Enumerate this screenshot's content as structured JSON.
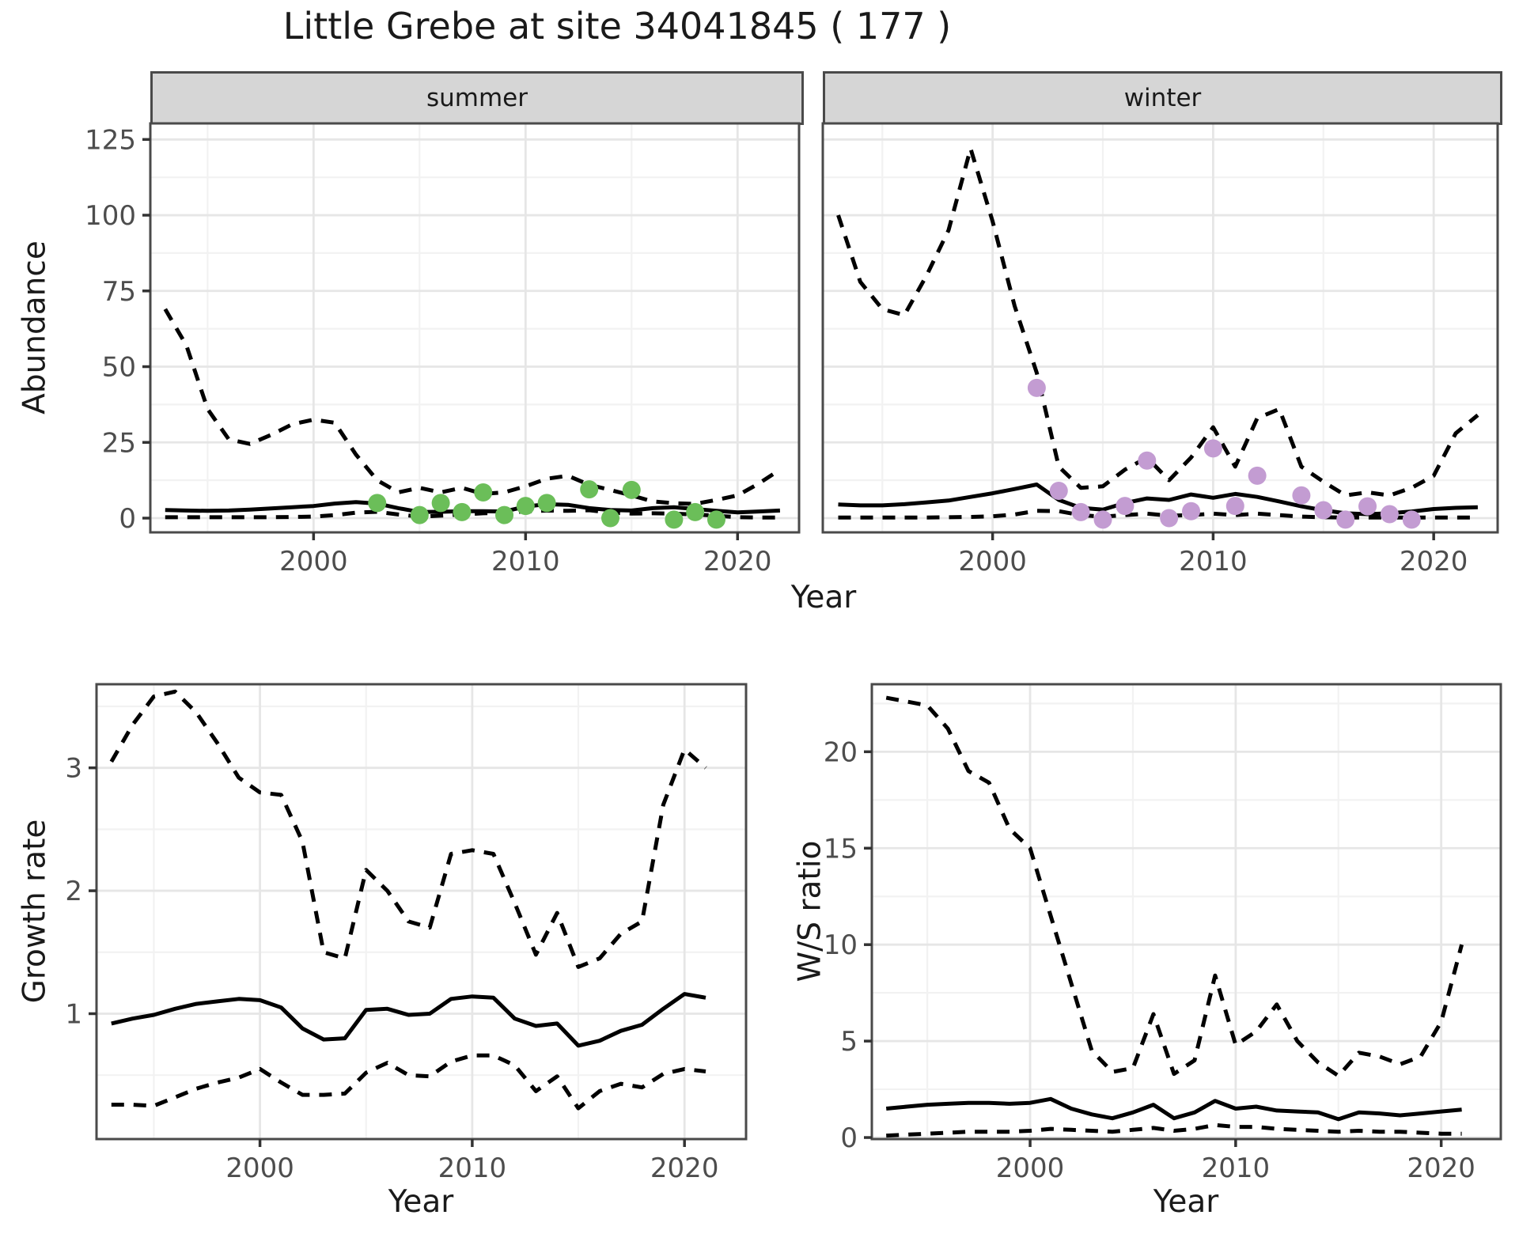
{
  "title": "Little Grebe at site 34041845 ( 177 )",
  "facets": {
    "summer": "summer",
    "winter": "winter"
  },
  "axis_labels": {
    "abundance": "Abundance",
    "year_top": "Year",
    "growth_rate": "Growth rate",
    "year_bottom_left": "Year",
    "ws_ratio": "W/S ratio",
    "year_bottom_right": "Year"
  },
  "colors": {
    "summer_points": "#6BBE59",
    "winter_points": "#C39CD2",
    "line": "#000000",
    "strip_bg": "#D6D6D6",
    "panel_border": "#4A4A4A",
    "grid_major": "#E6E6E6",
    "grid_minor": "#F2F2F2",
    "tick_text": "#4D4D4D"
  },
  "chart_data": [
    {
      "type": "line",
      "name": "abundance-summer",
      "facet": "summer",
      "ylabel": "Abundance",
      "xlabel": "Year",
      "xlim": [
        1992.3,
        2022.9
      ],
      "ylim": [
        -4.7,
        130.3
      ],
      "xticks": [
        2000,
        2010,
        2020
      ],
      "xtick_minor": [
        1995,
        2005,
        2015
      ],
      "yticks": [
        0,
        25,
        50,
        75,
        100,
        125
      ],
      "ytick_minor": [
        12.5,
        37.5,
        62.5,
        87.5,
        112.5
      ],
      "grid": true,
      "years": [
        1993,
        1994,
        1995,
        1996,
        1997,
        1998,
        1999,
        2000,
        2001,
        2002,
        2003,
        2004,
        2005,
        2006,
        2007,
        2008,
        2009,
        2010,
        2011,
        2012,
        2013,
        2014,
        2015,
        2016,
        2017,
        2018,
        2019,
        2020,
        2021,
        2022
      ],
      "series": [
        {
          "name": "upper_95ci",
          "style": "dashed",
          "values": [
            69,
            57,
            36,
            26,
            24.5,
            27.5,
            31,
            32.5,
            31.5,
            21,
            12.5,
            8.5,
            10,
            8.5,
            10,
            8,
            8.5,
            10.5,
            13,
            14,
            11,
            9.3,
            7.5,
            5.5,
            4.9,
            4.7,
            6,
            7.5,
            11.4,
            16
          ]
        },
        {
          "name": "mean",
          "style": "solid",
          "values": [
            2.7,
            2.5,
            2.4,
            2.5,
            2.8,
            3.2,
            3.6,
            4.0,
            4.8,
            5.3,
            4.8,
            3.3,
            2.0,
            2.1,
            2.3,
            2.3,
            2.2,
            3.8,
            4.6,
            4.4,
            3.3,
            2.7,
            2.5,
            3.3,
            3.6,
            3.0,
            2.4,
            1.9,
            2.2,
            2.5
          ]
        },
        {
          "name": "lower_95ci",
          "style": "dashed",
          "values": [
            0.3,
            0.3,
            0.3,
            0.3,
            0.3,
            0.3,
            0.4,
            0.5,
            1.0,
            1.8,
            2.1,
            1.2,
            0.5,
            0.8,
            1.2,
            1.6,
            1.8,
            2.2,
            2.5,
            2.4,
            2.6,
            1.8,
            1.5,
            1.6,
            1.5,
            1.2,
            0.8,
            0.3,
            0.2,
            0.2
          ]
        }
      ],
      "observations": {
        "color_key": "summer_points",
        "points": [
          [
            2003,
            5
          ],
          [
            2005,
            1
          ],
          [
            2006,
            5
          ],
          [
            2007,
            2
          ],
          [
            2008,
            8.5
          ],
          [
            2009,
            1
          ],
          [
            2010,
            4
          ],
          [
            2011,
            5
          ],
          [
            2013,
            9.5
          ],
          [
            2014,
            0
          ],
          [
            2015,
            9.3
          ],
          [
            2017,
            -0.5
          ],
          [
            2018,
            2
          ],
          [
            2019,
            -0.5
          ]
        ]
      }
    },
    {
      "type": "line",
      "name": "abundance-winter",
      "facet": "winter",
      "ylabel": "Abundance",
      "xlabel": "Year",
      "xlim": [
        1992.3,
        2022.9
      ],
      "ylim": [
        -4.7,
        130.3
      ],
      "xticks": [
        2000,
        2010,
        2020
      ],
      "xtick_minor": [
        1995,
        2005,
        2015
      ],
      "yticks": [
        0,
        25,
        50,
        75,
        100,
        125
      ],
      "ytick_minor": [
        12.5,
        37.5,
        62.5,
        87.5,
        112.5
      ],
      "grid": true,
      "years": [
        1993,
        1994,
        1995,
        1996,
        1997,
        1998,
        1999,
        2000,
        2001,
        2002,
        2003,
        2004,
        2005,
        2006,
        2007,
        2008,
        2009,
        2010,
        2011,
        2012,
        2013,
        2014,
        2015,
        2016,
        2017,
        2018,
        2019,
        2020,
        2021,
        2022
      ],
      "series": [
        {
          "name": "upper_95ci",
          "style": "dashed",
          "values": [
            100,
            78,
            69,
            67,
            80,
            95,
            122,
            98,
            70,
            48,
            17,
            10,
            10.5,
            16,
            20,
            12.5,
            20,
            30,
            17,
            33,
            36,
            17,
            12,
            7.5,
            8.5,
            7.5,
            10,
            14,
            28,
            34
          ]
        },
        {
          "name": "mean",
          "style": "solid",
          "values": [
            4.5,
            4.2,
            4.2,
            4.6,
            5.2,
            5.8,
            7.0,
            8.2,
            9.6,
            11.1,
            6.0,
            3.4,
            2.8,
            5.0,
            6.5,
            6.0,
            7.8,
            6.7,
            8.0,
            7.0,
            5.5,
            3.9,
            2.6,
            1.6,
            1.3,
            1.6,
            2.2,
            3.0,
            3.4,
            3.6
          ]
        },
        {
          "name": "lower_95ci",
          "style": "dashed",
          "values": [
            0.2,
            0.2,
            0.2,
            0.2,
            0.2,
            0.3,
            0.4,
            0.6,
            1.2,
            2.4,
            2.3,
            1.0,
            0.5,
            1.0,
            1.5,
            0.8,
            1.0,
            1.5,
            1.0,
            1.5,
            1.0,
            0.5,
            0.3,
            0.2,
            0.2,
            0.2,
            0.2,
            0.2,
            0.2,
            0.2
          ]
        }
      ],
      "observations": {
        "color_key": "winter_points",
        "points": [
          [
            2002,
            43
          ],
          [
            2003,
            9
          ],
          [
            2004,
            2
          ],
          [
            2005,
            -0.5
          ],
          [
            2006,
            4
          ],
          [
            2007,
            19
          ],
          [
            2008,
            0
          ],
          [
            2009,
            2.3
          ],
          [
            2010,
            23
          ],
          [
            2011,
            4
          ],
          [
            2012,
            14
          ],
          [
            2014,
            7.5
          ],
          [
            2015,
            2.6
          ],
          [
            2016,
            -0.5
          ],
          [
            2017,
            3.9
          ],
          [
            2018,
            1.3
          ],
          [
            2019,
            -0.5
          ]
        ]
      }
    },
    {
      "type": "line",
      "name": "growth-rate",
      "ylabel": "Growth rate",
      "xlabel": "Year",
      "xlim": [
        1992.3,
        2022.9
      ],
      "ylim": [
        -0.02,
        3.68
      ],
      "xticks": [
        2000,
        2010,
        2020
      ],
      "xtick_minor": [
        1995,
        2005,
        2015
      ],
      "yticks": [
        1,
        2,
        3
      ],
      "ytick_minor": [
        0.5,
        1.5,
        2.5,
        3.5
      ],
      "grid": true,
      "years": [
        1993,
        1994,
        1995,
        1996,
        1997,
        1998,
        1999,
        2000,
        2001,
        2002,
        2003,
        2004,
        2005,
        2006,
        2007,
        2008,
        2009,
        2010,
        2011,
        2012,
        2013,
        2014,
        2015,
        2016,
        2017,
        2018,
        2019,
        2020,
        2021
      ],
      "series": [
        {
          "name": "upper_95ci",
          "style": "dashed",
          "values": [
            3.05,
            3.35,
            3.58,
            3.62,
            3.45,
            3.2,
            2.92,
            2.8,
            2.78,
            2.4,
            1.5,
            1.45,
            2.17,
            2.0,
            1.75,
            1.7,
            2.3,
            2.33,
            2.3,
            1.9,
            1.48,
            1.82,
            1.38,
            1.45,
            1.65,
            1.75,
            2.7,
            3.15,
            3.0
          ]
        },
        {
          "name": "mean",
          "style": "solid",
          "values": [
            0.92,
            0.96,
            0.99,
            1.04,
            1.08,
            1.1,
            1.12,
            1.11,
            1.05,
            0.88,
            0.79,
            0.8,
            1.03,
            1.04,
            0.99,
            1.0,
            1.12,
            1.14,
            1.13,
            0.96,
            0.9,
            0.92,
            0.74,
            0.78,
            0.86,
            0.91,
            1.04,
            1.16,
            1.13
          ]
        },
        {
          "name": "lower_95ci",
          "style": "dashed",
          "values": [
            0.26,
            0.26,
            0.25,
            0.32,
            0.39,
            0.44,
            0.48,
            0.55,
            0.44,
            0.34,
            0.34,
            0.35,
            0.52,
            0.6,
            0.5,
            0.49,
            0.61,
            0.66,
            0.66,
            0.58,
            0.37,
            0.49,
            0.23,
            0.37,
            0.43,
            0.4,
            0.51,
            0.55,
            0.53
          ]
        }
      ]
    },
    {
      "type": "line",
      "name": "ws-ratio",
      "ylabel": "W/S ratio",
      "xlabel": "Year",
      "xlim": [
        1992.3,
        2022.9
      ],
      "ylim": [
        -0.08,
        23.5
      ],
      "xticks": [
        2000,
        2010,
        2020
      ],
      "xtick_minor": [
        1995,
        2005,
        2015
      ],
      "yticks": [
        0,
        5,
        10,
        15,
        20
      ],
      "ytick_minor": [
        2.5,
        7.5,
        12.5,
        17.5,
        22.5
      ],
      "grid": true,
      "years": [
        1993,
        1994,
        1995,
        1996,
        1997,
        1998,
        1999,
        2000,
        2001,
        2002,
        2003,
        2004,
        2005,
        2006,
        2007,
        2008,
        2009,
        2010,
        2011,
        2012,
        2013,
        2014,
        2015,
        2016,
        2017,
        2018,
        2019,
        2020,
        2021
      ],
      "series": [
        {
          "name": "upper_95ci",
          "style": "dashed",
          "values": [
            22.8,
            22.6,
            22.4,
            21.2,
            19.0,
            18.4,
            16.0,
            15.0,
            11.5,
            8.0,
            4.5,
            3.4,
            3.6,
            6.4,
            3.3,
            4.0,
            8.4,
            4.8,
            5.5,
            6.9,
            5.0,
            3.9,
            3.2,
            4.4,
            4.2,
            3.8,
            4.2,
            6.0,
            10.0
          ]
        },
        {
          "name": "mean",
          "style": "solid",
          "values": [
            1.5,
            1.6,
            1.7,
            1.75,
            1.8,
            1.8,
            1.75,
            1.8,
            2.0,
            1.5,
            1.2,
            1.0,
            1.3,
            1.7,
            1.0,
            1.3,
            1.9,
            1.5,
            1.6,
            1.4,
            1.35,
            1.3,
            0.95,
            1.3,
            1.25,
            1.15,
            1.25,
            1.35,
            1.45
          ]
        },
        {
          "name": "lower_95ci",
          "style": "dashed",
          "values": [
            0.1,
            0.15,
            0.2,
            0.25,
            0.3,
            0.3,
            0.3,
            0.35,
            0.45,
            0.4,
            0.35,
            0.3,
            0.4,
            0.5,
            0.35,
            0.45,
            0.65,
            0.55,
            0.55,
            0.45,
            0.4,
            0.35,
            0.3,
            0.35,
            0.3,
            0.3,
            0.25,
            0.2,
            0.2
          ]
        }
      ]
    }
  ]
}
